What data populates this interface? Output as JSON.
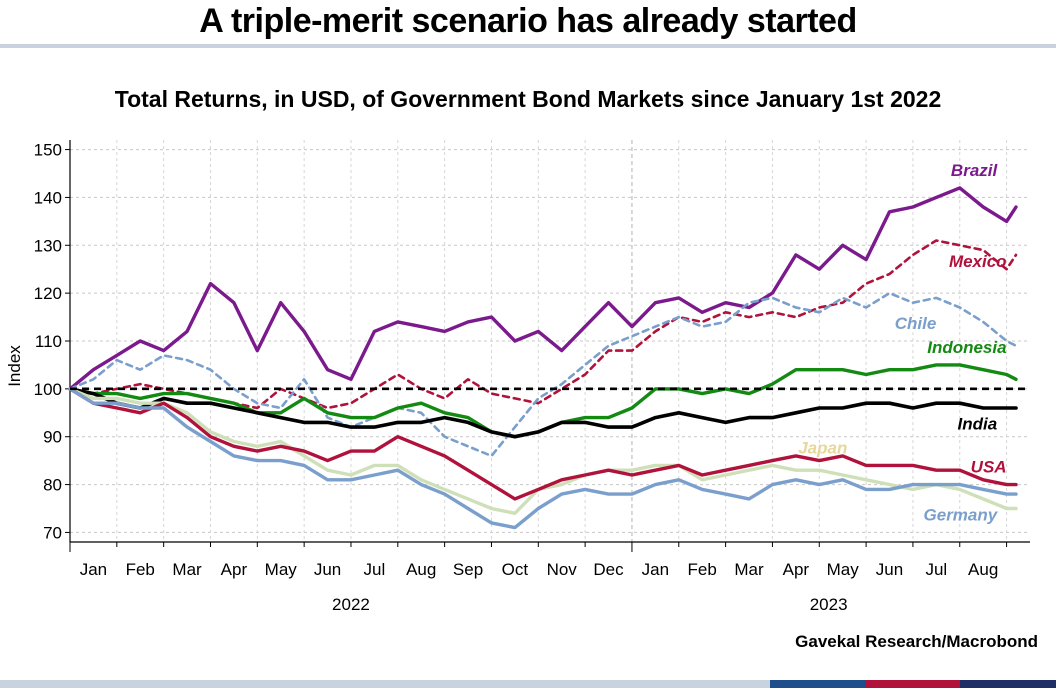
{
  "header": {
    "title": "A triple-merit scenario has already started",
    "subtitle": "Total Returns, in USD, of Government Bond Markets since January 1st 2022"
  },
  "footer": {
    "source": "Gavekal Research/Macrobond",
    "stripe_colors": [
      "#c9d3e0",
      "#1f4e8c",
      "#b0123c",
      "#1f2f66"
    ]
  },
  "chart_data": {
    "type": "line",
    "ylabel": "Index",
    "ylim": [
      68,
      152
    ],
    "yticks": [
      70,
      80,
      90,
      100,
      110,
      120,
      130,
      140,
      150
    ],
    "xlim": [
      0,
      20.5
    ],
    "month_labels": [
      "Jan",
      "Feb",
      "Mar",
      "Apr",
      "May",
      "Jun",
      "Jul",
      "Aug",
      "Sep",
      "Oct",
      "Nov",
      "Dec",
      "Jan",
      "Feb",
      "Mar",
      "Apr",
      "May",
      "Jun",
      "Jul",
      "Aug"
    ],
    "years": [
      {
        "label": "2022",
        "center": 6
      },
      {
        "label": "2023",
        "center": 16.2
      }
    ],
    "year_boundary": 12,
    "reference_line": 100,
    "grid": true,
    "series": [
      {
        "name": "Brazil",
        "color": "#7b1a8c",
        "width": 3.4,
        "dash": "",
        "x": [
          0,
          0.5,
          1,
          1.5,
          2,
          2.5,
          3,
          3.5,
          4,
          4.5,
          5,
          5.5,
          6,
          6.5,
          7,
          7.5,
          8,
          8.5,
          9,
          9.5,
          10,
          10.5,
          11,
          11.5,
          12,
          12.5,
          13,
          13.5,
          14,
          14.5,
          15,
          15.5,
          16,
          16.5,
          17,
          17.5,
          18,
          18.5,
          19,
          19.5,
          20,
          20.2
        ],
        "y": [
          100,
          104,
          107,
          110,
          108,
          112,
          122,
          118,
          108,
          118,
          112,
          104,
          102,
          112,
          114,
          113,
          112,
          114,
          115,
          110,
          112,
          108,
          113,
          118,
          113,
          118,
          119,
          116,
          118,
          117,
          120,
          128,
          125,
          130,
          127,
          137,
          138,
          140,
          142,
          138,
          135,
          138
        ]
      },
      {
        "name": "Mexico",
        "color": "#b0123c",
        "width": 2.6,
        "dash": "6,5",
        "x": [
          0,
          0.5,
          1,
          1.5,
          2,
          2.5,
          3,
          3.5,
          4,
          4.5,
          5,
          5.5,
          6,
          6.5,
          7,
          7.5,
          8,
          8.5,
          9,
          9.5,
          10,
          10.5,
          11,
          11.5,
          12,
          12.5,
          13,
          13.5,
          14,
          14.5,
          15,
          15.5,
          16,
          16.5,
          17,
          17.5,
          18,
          18.5,
          19,
          19.5,
          20,
          20.2
        ],
        "y": [
          100,
          99,
          100,
          101,
          100,
          99,
          98,
          97,
          96,
          100,
          98,
          96,
          97,
          100,
          103,
          100,
          98,
          102,
          99,
          98,
          97,
          100,
          103,
          108,
          108,
          112,
          115,
          114,
          116,
          115,
          116,
          115,
          117,
          118,
          122,
          124,
          128,
          131,
          130,
          129,
          125,
          128
        ]
      },
      {
        "name": "Chile",
        "color": "#7a9fcc",
        "width": 2.6,
        "dash": "6,5",
        "x": [
          0,
          0.5,
          1,
          1.5,
          2,
          2.5,
          3,
          3.5,
          4,
          4.5,
          5,
          5.5,
          6,
          6.5,
          7,
          7.5,
          8,
          8.5,
          9,
          9.5,
          10,
          10.5,
          11,
          11.5,
          12,
          12.5,
          13,
          13.5,
          14,
          14.5,
          15,
          15.5,
          16,
          16.5,
          17,
          17.5,
          18,
          18.5,
          19,
          19.5,
          20,
          20.2
        ],
        "y": [
          100,
          102,
          106,
          104,
          107,
          106,
          104,
          100,
          97,
          96,
          102,
          94,
          92,
          94,
          96,
          95,
          90,
          88,
          86,
          92,
          98,
          101,
          105,
          109,
          111,
          113,
          115,
          113,
          114,
          118,
          119,
          117,
          116,
          119,
          117,
          120,
          118,
          119,
          117,
          114,
          110,
          109
        ]
      },
      {
        "name": "Indonesia",
        "color": "#138a12",
        "width": 3.4,
        "dash": "",
        "x": [
          0,
          0.5,
          1,
          1.5,
          2,
          2.5,
          3,
          3.5,
          4,
          4.5,
          5,
          5.5,
          6,
          6.5,
          7,
          7.5,
          8,
          8.5,
          9,
          9.5,
          10,
          10.5,
          11,
          11.5,
          12,
          12.5,
          13,
          13.5,
          14,
          14.5,
          15,
          15.5,
          16,
          16.5,
          17,
          17.5,
          18,
          18.5,
          19,
          19.5,
          20,
          20.2
        ],
        "y": [
          100,
          99,
          99,
          98,
          99,
          99,
          98,
          97,
          95,
          95,
          98,
          95,
          94,
          94,
          96,
          97,
          95,
          94,
          91,
          90,
          91,
          93,
          94,
          94,
          96,
          100,
          100,
          99,
          100,
          99,
          101,
          104,
          104,
          104,
          103,
          104,
          104,
          105,
          105,
          104,
          103,
          102
        ]
      },
      {
        "name": "India",
        "color": "#000000",
        "width": 3.6,
        "dash": "",
        "x": [
          0,
          0.5,
          1,
          1.5,
          2,
          2.5,
          3,
          3.5,
          4,
          4.5,
          5,
          5.5,
          6,
          6.5,
          7,
          7.5,
          8,
          8.5,
          9,
          9.5,
          10,
          10.5,
          11,
          11.5,
          12,
          12.5,
          13,
          13.5,
          14,
          14.5,
          15,
          15.5,
          16,
          16.5,
          17,
          17.5,
          18,
          18.5,
          19,
          19.5,
          20,
          20.2
        ],
        "y": [
          100,
          99,
          97,
          96,
          98,
          97,
          97,
          96,
          95,
          94,
          93,
          93,
          92,
          92,
          93,
          93,
          94,
          93,
          91,
          90,
          91,
          93,
          93,
          92,
          92,
          94,
          95,
          94,
          93,
          94,
          94,
          95,
          96,
          96,
          97,
          97,
          96,
          97,
          97,
          96,
          96,
          96
        ]
      },
      {
        "name": "Japan",
        "color": "#cfe0b8",
        "width": 3.4,
        "dash": "",
        "x": [
          0,
          0.5,
          1,
          1.5,
          2,
          2.5,
          3,
          3.5,
          4,
          4.5,
          5,
          5.5,
          6,
          6.5,
          7,
          7.5,
          8,
          8.5,
          9,
          9.5,
          10,
          10.5,
          11,
          11.5,
          12,
          12.5,
          13,
          13.5,
          14,
          14.5,
          15,
          15.5,
          16,
          16.5,
          17,
          17.5,
          18,
          18.5,
          19,
          19.5,
          20,
          20.2
        ],
        "y": [
          100,
          98,
          98,
          97,
          97,
          95,
          91,
          89,
          88,
          89,
          86,
          83,
          82,
          84,
          84,
          81,
          79,
          77,
          75,
          74,
          79,
          80,
          82,
          83,
          83,
          84,
          84,
          81,
          82,
          83,
          84,
          83,
          83,
          82,
          81,
          80,
          79,
          80,
          79,
          77,
          75,
          75
        ]
      },
      {
        "name": "USA",
        "color": "#b0123c",
        "width": 3.4,
        "dash": "",
        "x": [
          0,
          0.5,
          1,
          1.5,
          2,
          2.5,
          3,
          3.5,
          4,
          4.5,
          5,
          5.5,
          6,
          6.5,
          7,
          7.5,
          8,
          8.5,
          9,
          9.5,
          10,
          10.5,
          11,
          11.5,
          12,
          12.5,
          13,
          13.5,
          14,
          14.5,
          15,
          15.5,
          16,
          16.5,
          17,
          17.5,
          18,
          18.5,
          19,
          19.5,
          20,
          20.2
        ],
        "y": [
          100,
          97,
          96,
          95,
          97,
          94,
          90,
          88,
          87,
          88,
          87,
          85,
          87,
          87,
          90,
          88,
          86,
          83,
          80,
          77,
          79,
          81,
          82,
          83,
          82,
          83,
          84,
          82,
          83,
          84,
          85,
          86,
          85,
          86,
          84,
          84,
          84,
          83,
          83,
          81,
          80,
          80
        ]
      },
      {
        "name": "Germany",
        "color": "#7a9fcc",
        "width": 3.4,
        "dash": "",
        "x": [
          0,
          0.5,
          1,
          1.5,
          2,
          2.5,
          3,
          3.5,
          4,
          4.5,
          5,
          5.5,
          6,
          6.5,
          7,
          7.5,
          8,
          8.5,
          9,
          9.5,
          10,
          10.5,
          11,
          11.5,
          12,
          12.5,
          13,
          13.5,
          14,
          14.5,
          15,
          15.5,
          16,
          16.5,
          17,
          17.5,
          18,
          18.5,
          19,
          19.5,
          20,
          20.2
        ],
        "y": [
          100,
          97,
          97,
          96,
          96,
          92,
          89,
          86,
          85,
          85,
          84,
          81,
          81,
          82,
          83,
          80,
          78,
          75,
          72,
          71,
          75,
          78,
          79,
          78,
          78,
          80,
          81,
          79,
          78,
          77,
          80,
          81,
          80,
          81,
          79,
          79,
          80,
          80,
          80,
          79,
          78,
          78
        ]
      }
    ],
    "labels": [
      {
        "text": "Brazil",
        "color": "#7b1a8c",
        "x": 19.8,
        "y": 144.5
      },
      {
        "text": "Mexico",
        "color": "#b0123c",
        "x": 20.0,
        "y": 125.5
      },
      {
        "text": "Chile",
        "color": "#7a9fcc",
        "x": 18.5,
        "y": 112.5
      },
      {
        "text": "Indonesia",
        "color": "#138a12",
        "x": 20.0,
        "y": 107.5
      },
      {
        "text": "India",
        "color": "#000000",
        "x": 19.8,
        "y": 91.5
      },
      {
        "text": "Japan",
        "color": "#e6d79c",
        "x": 16.6,
        "y": 86.5
      },
      {
        "text": "USA",
        "color": "#b0123c",
        "x": 20.0,
        "y": 82.5
      },
      {
        "text": "Germany",
        "color": "#7a9fcc",
        "x": 19.8,
        "y": 72.5
      }
    ]
  }
}
